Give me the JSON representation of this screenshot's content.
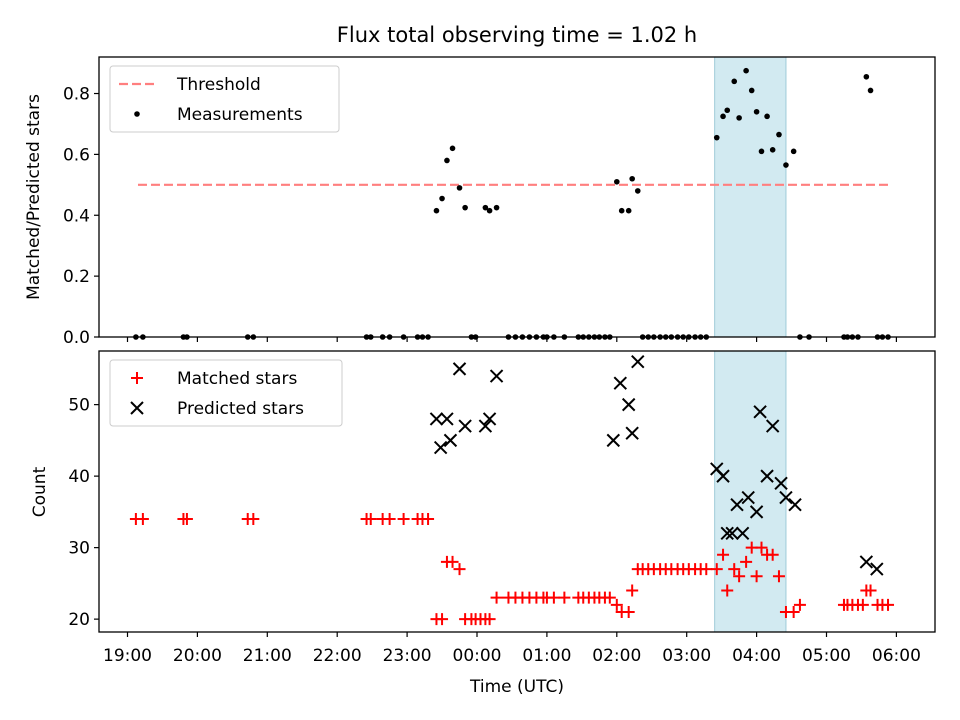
{
  "chart_data": [
    {
      "type": "scatter",
      "title": "Flux total observing time = 1.02 h",
      "ylabel": "Matched/Predicted stars",
      "xlabel": "",
      "ylim": [
        0,
        0.92
      ],
      "yticks": [
        0,
        0.2,
        0.4,
        0.6,
        0.8
      ],
      "ytick_labels": [
        "0.0",
        "0.2",
        "0.4",
        "0.6",
        "0.8"
      ],
      "highlight_span": {
        "x0": 3.4,
        "x1": 4.42,
        "color": "#add8e6"
      },
      "legend": {
        "position": "top-left",
        "entries": [
          "Threshold",
          "Measurements"
        ]
      },
      "series": [
        {
          "name": "Threshold",
          "kind": "line",
          "style": "dashed",
          "color": "#ff7f7f",
          "x": [
            19.15,
            5.88
          ],
          "y": [
            0.5,
            0.5
          ]
        },
        {
          "name": "Measurements",
          "kind": "scatter",
          "marker": "dot",
          "color": "#000000",
          "x": [
            19.12,
            19.22,
            19.8,
            19.85,
            20.72,
            20.8,
            22.42,
            22.48,
            22.65,
            22.75,
            22.95,
            23.15,
            23.22,
            23.3,
            23.42,
            23.5,
            23.57,
            23.65,
            23.75,
            23.83,
            23.92,
            23.98,
            24.12,
            24.18,
            24.28,
            24.45,
            24.55,
            24.65,
            24.75,
            24.85,
            24.95,
            1.0,
            1.1,
            1.25,
            1.45,
            1.52,
            1.6,
            1.68,
            1.75,
            1.83,
            1.9,
            2.0,
            2.07,
            2.17,
            2.22,
            2.3,
            2.37,
            2.45,
            2.53,
            2.62,
            2.7,
            2.78,
            2.87,
            2.95,
            3.03,
            3.12,
            3.2,
            3.28,
            3.43,
            3.52,
            3.58,
            3.68,
            3.75,
            3.85,
            3.93,
            4.0,
            4.07,
            4.15,
            4.23,
            4.32,
            4.42,
            4.53,
            4.62,
            4.75,
            5.25,
            5.3,
            5.37,
            5.45,
            5.57,
            5.63,
            5.73,
            5.8,
            5.88
          ],
          "y": [
            0,
            0,
            0,
            0,
            0,
            0,
            0,
            0,
            0,
            0,
            0,
            0,
            0,
            0,
            0.415,
            0.455,
            0.58,
            0.62,
            0.49,
            0.425,
            0,
            0,
            0.425,
            0.415,
            0.425,
            0,
            0,
            0,
            0,
            0,
            0,
            0,
            0,
            0,
            0,
            0,
            0,
            0,
            0,
            0,
            0,
            0.51,
            0.415,
            0.415,
            0.52,
            0.48,
            0,
            0,
            0,
            0,
            0,
            0,
            0,
            0,
            0,
            0,
            0,
            0,
            0.655,
            0.725,
            0.745,
            0.84,
            0.72,
            0.875,
            0.81,
            0.74,
            0.61,
            0.725,
            0.615,
            0.665,
            0.565,
            0.61,
            0,
            0,
            0,
            0,
            0,
            0,
            0.855,
            0.81,
            0,
            0,
            0
          ]
        }
      ]
    },
    {
      "type": "scatter",
      "title": "",
      "ylabel": "Count",
      "xlabel": "Time (UTC)",
      "ylim": [
        18.2,
        57.5
      ],
      "yticks": [
        20,
        30,
        40,
        50
      ],
      "ytick_labels": [
        "20",
        "30",
        "40",
        "50"
      ],
      "xticks": [
        19,
        20,
        21,
        22,
        23,
        0,
        1,
        2,
        3,
        4,
        5,
        6
      ],
      "xtick_labels": [
        "19:00",
        "20:00",
        "21:00",
        "22:00",
        "23:00",
        "00:00",
        "01:00",
        "02:00",
        "03:00",
        "04:00",
        "05:00",
        "06:00"
      ],
      "highlight_span": {
        "x0": 3.4,
        "x1": 4.42,
        "color": "#add8e6"
      },
      "legend": {
        "position": "top-left",
        "entries": [
          "Matched stars",
          "Predicted stars"
        ]
      },
      "series": [
        {
          "name": "Matched stars",
          "kind": "scatter",
          "marker": "plus",
          "color": "#ff0000",
          "x": [
            19.12,
            19.22,
            19.8,
            19.85,
            20.72,
            20.8,
            22.42,
            22.48,
            22.65,
            22.75,
            22.95,
            23.15,
            23.22,
            23.3,
            23.42,
            23.5,
            23.57,
            23.65,
            23.75,
            23.83,
            23.92,
            23.98,
            24.05,
            24.12,
            24.18,
            24.28,
            24.45,
            24.55,
            24.65,
            24.75,
            24.85,
            24.95,
            1.0,
            1.1,
            1.25,
            1.45,
            1.52,
            1.6,
            1.68,
            1.75,
            1.83,
            1.9,
            2.0,
            2.07,
            2.17,
            2.22,
            2.3,
            2.37,
            2.45,
            2.53,
            2.62,
            2.7,
            2.78,
            2.87,
            2.95,
            3.03,
            3.12,
            3.2,
            3.28,
            3.43,
            3.52,
            3.58,
            3.68,
            3.75,
            3.85,
            3.93,
            4.0,
            4.07,
            4.15,
            4.23,
            4.32,
            4.42,
            4.53,
            4.62,
            5.25,
            5.3,
            5.37,
            5.45,
            5.52,
            5.57,
            5.63,
            5.73,
            5.8,
            5.88
          ],
          "y": [
            34,
            34,
            34,
            34,
            34,
            34,
            34,
            34,
            34,
            34,
            34,
            34,
            34,
            34,
            20,
            20,
            28,
            28,
            27,
            20,
            20,
            20,
            20,
            20,
            20,
            23,
            23,
            23,
            23,
            23,
            23,
            23,
            23,
            23,
            23,
            23,
            23,
            23,
            23,
            23,
            23,
            23,
            22,
            21,
            21,
            24,
            27,
            27,
            27,
            27,
            27,
            27,
            27,
            27,
            27,
            27,
            27,
            27,
            27,
            27,
            29,
            24,
            27,
            26,
            28,
            30,
            26,
            30,
            29,
            29,
            26,
            21,
            21,
            22,
            22,
            22,
            22,
            22,
            22,
            24,
            24,
            22,
            22,
            22
          ]
        },
        {
          "name": "Predicted stars",
          "kind": "scatter",
          "marker": "x",
          "color": "#000000",
          "x": [
            23.42,
            23.48,
            23.57,
            23.62,
            23.75,
            23.83,
            24.12,
            24.18,
            24.28,
            1.95,
            2.05,
            2.17,
            2.22,
            2.3,
            3.43,
            3.52,
            3.58,
            3.65,
            3.72,
            3.8,
            3.88,
            4.0,
            4.05,
            4.15,
            4.23,
            4.35,
            4.42,
            4.55,
            5.57,
            5.72
          ],
          "y": [
            48,
            44,
            48,
            45,
            55,
            47,
            47,
            48,
            54,
            45,
            53,
            50,
            46,
            56,
            41,
            40,
            32,
            32,
            36,
            32,
            37,
            35,
            49,
            40,
            47,
            39,
            37,
            36,
            28,
            27
          ]
        }
      ]
    }
  ]
}
